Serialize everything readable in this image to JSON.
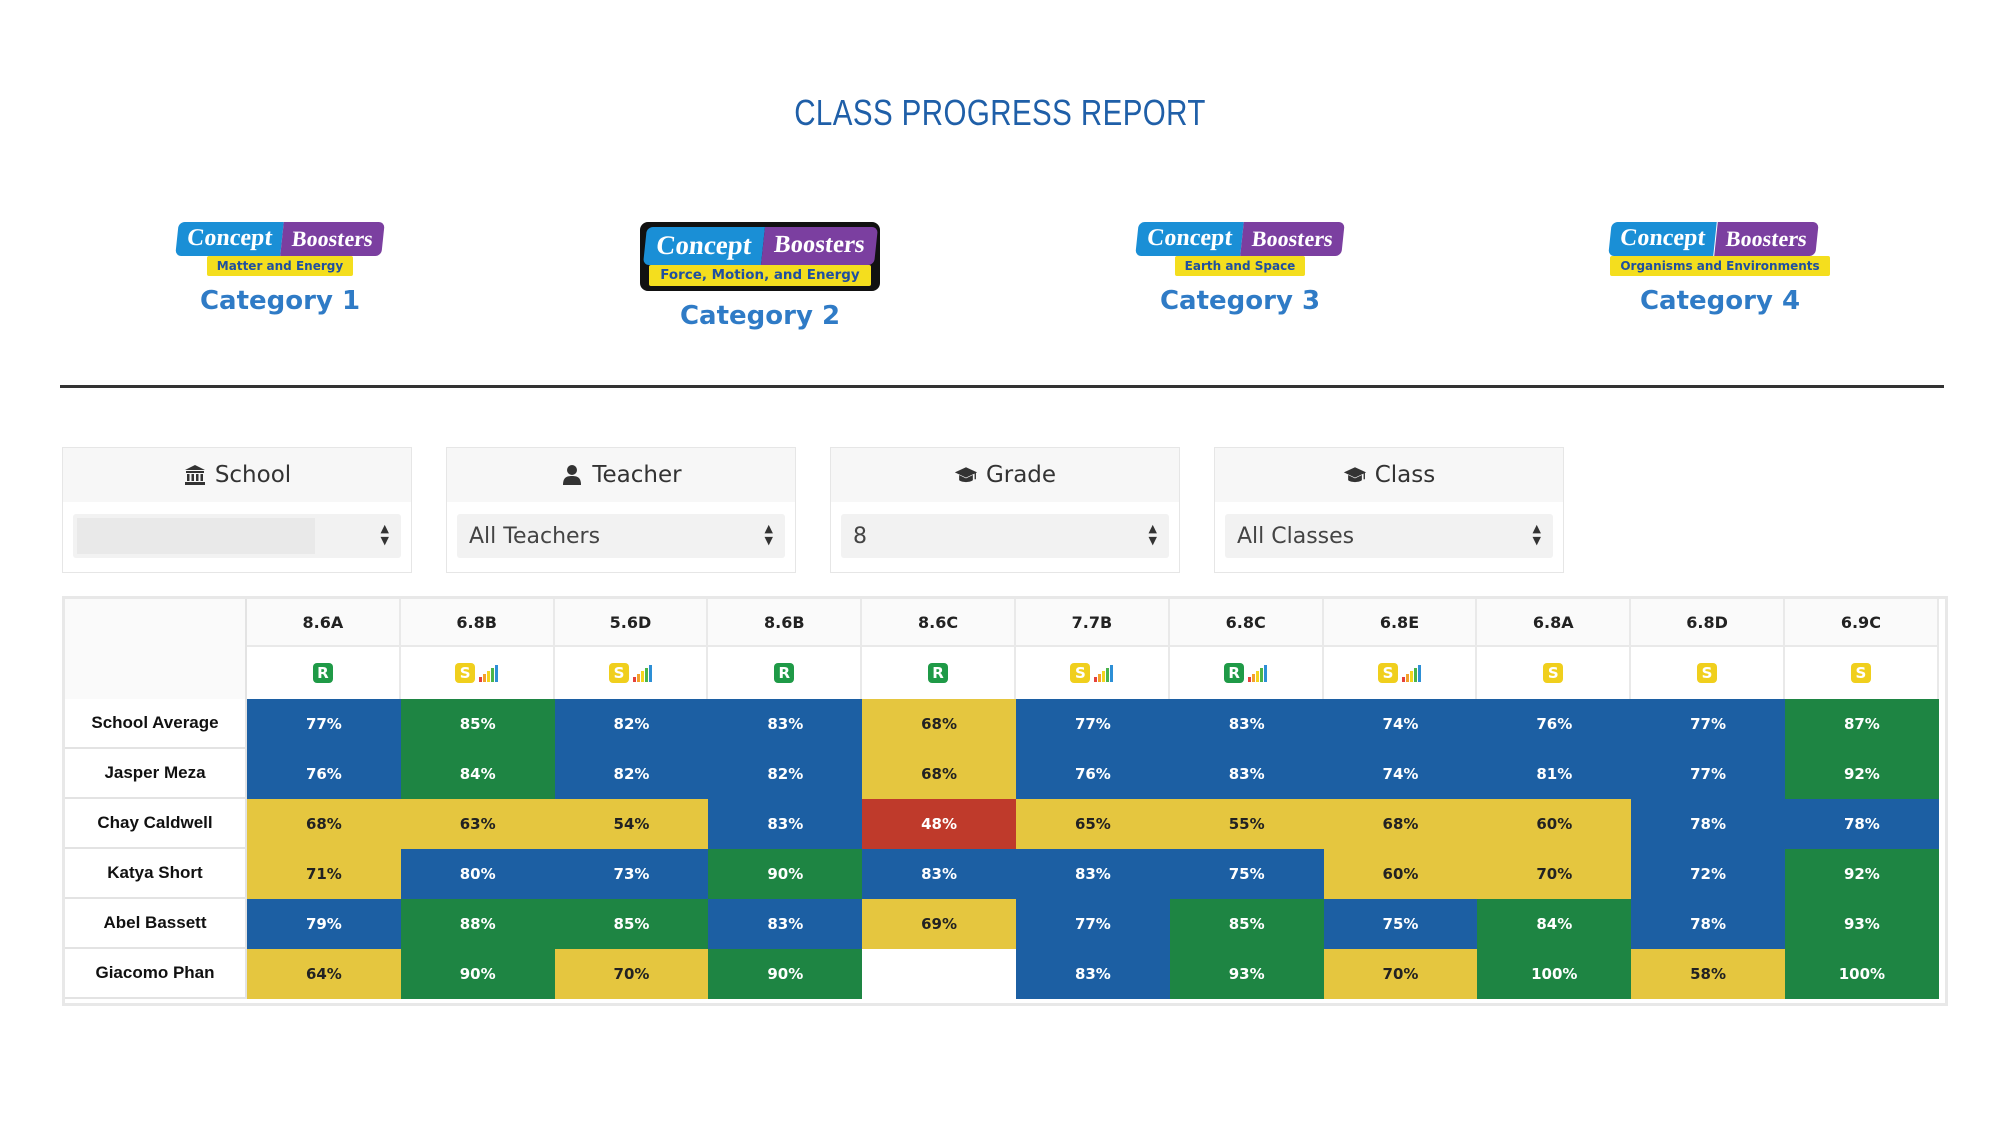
{
  "title": "CLASS PROGRESS REPORT",
  "categories": [
    {
      "logo_left": "Concept",
      "logo_right": "Boosters",
      "subtitle": "Matter and Energy",
      "label": "Category 1"
    },
    {
      "logo_left": "Concept",
      "logo_right": "Boosters",
      "subtitle": "Force, Motion, and Energy",
      "label": "Category 2"
    },
    {
      "logo_left": "Concept",
      "logo_right": "Boosters",
      "subtitle": "Earth and Space",
      "label": "Category 3"
    },
    {
      "logo_left": "Concept",
      "logo_right": "Boosters",
      "subtitle": "Organisms and Environments",
      "label": "Category 4"
    }
  ],
  "filters": [
    {
      "label": "School",
      "icon": "bank-icon",
      "value": ""
    },
    {
      "label": "Teacher",
      "icon": "user-icon",
      "value": "All Teachers"
    },
    {
      "label": "Grade",
      "icon": "graduation-cap-icon",
      "value": "8"
    },
    {
      "label": "Class",
      "icon": "graduation-cap-icon",
      "value": "All Classes"
    }
  ],
  "columns": [
    {
      "code": "8.6A",
      "badge": "R",
      "bars": false
    },
    {
      "code": "6.8B",
      "badge": "S",
      "bars": true
    },
    {
      "code": "5.6D",
      "badge": "S",
      "bars": true
    },
    {
      "code": "8.6B",
      "badge": "R",
      "bars": false
    },
    {
      "code": "8.6C",
      "badge": "R",
      "bars": false
    },
    {
      "code": "7.7B",
      "badge": "S",
      "bars": true
    },
    {
      "code": "6.8C",
      "badge": "R",
      "bars": true
    },
    {
      "code": "6.8E",
      "badge": "S",
      "bars": true
    },
    {
      "code": "6.8A",
      "badge": "S",
      "bars": false
    },
    {
      "code": "6.8D",
      "badge": "S",
      "bars": false
    },
    {
      "code": "6.9C",
      "badge": "S",
      "bars": false
    }
  ],
  "rows": [
    {
      "name": "School Average",
      "values": [
        "77%",
        "85%",
        "82%",
        "83%",
        "68%",
        "77%",
        "83%",
        "74%",
        "76%",
        "77%",
        "87%"
      ]
    },
    {
      "name": "Jasper Meza",
      "values": [
        "76%",
        "84%",
        "82%",
        "82%",
        "68%",
        "76%",
        "83%",
        "74%",
        "81%",
        "77%",
        "92%"
      ]
    },
    {
      "name": "Chay Caldwell",
      "values": [
        "68%",
        "63%",
        "54%",
        "83%",
        "48%",
        "65%",
        "55%",
        "68%",
        "60%",
        "78%",
        "78%"
      ]
    },
    {
      "name": "Katya Short",
      "values": [
        "71%",
        "80%",
        "73%",
        "90%",
        "83%",
        "83%",
        "75%",
        "60%",
        "70%",
        "72%",
        "92%"
      ]
    },
    {
      "name": "Abel Bassett",
      "values": [
        "79%",
        "88%",
        "85%",
        "83%",
        "69%",
        "77%",
        "85%",
        "75%",
        "84%",
        "78%",
        "93%"
      ]
    },
    {
      "name": "Giacomo Phan",
      "values": [
        "64%",
        "90%",
        "70%",
        "90%",
        "",
        "83%",
        "93%",
        "70%",
        "100%",
        "58%",
        "100%"
      ]
    }
  ],
  "colors": {
    "blue": "#1c5fa3",
    "green": "#1e8543",
    "yellow": "#e5c63f",
    "red": "#bf3a2b",
    "empty": "#ffffff",
    "title": "#1f5fa8",
    "category_label": "#2f7bc6"
  }
}
